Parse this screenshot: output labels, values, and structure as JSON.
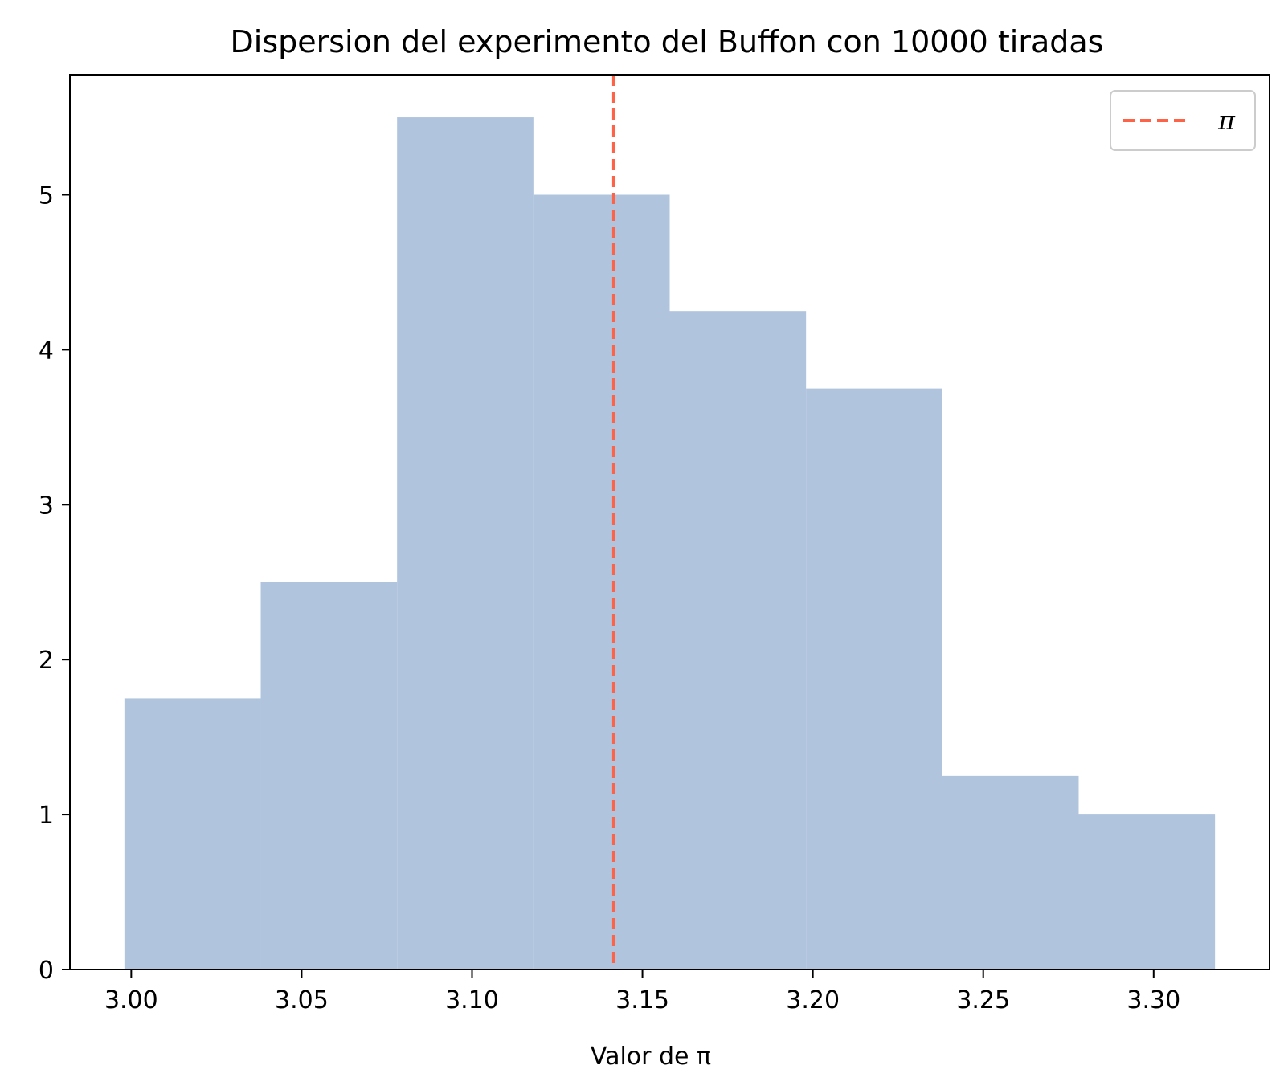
{
  "chart_data": {
    "type": "histogram",
    "title": "Dispersion del experimento del Buffon con 10000 tiradas",
    "xlabel": "Valor de π",
    "ylabel": "",
    "bin_edges": [
      2.998,
      3.038,
      3.078,
      3.118,
      3.158,
      3.198,
      3.238,
      3.278,
      3.318
    ],
    "values": [
      1.75,
      2.5,
      5.5,
      5.0,
      4.25,
      3.75,
      1.25,
      1.0
    ],
    "bar_color": "#b0c4de",
    "xlim": [
      2.982,
      3.334
    ],
    "ylim": [
      0,
      5.775
    ],
    "xticks": [
      3.0,
      3.05,
      3.1,
      3.15,
      3.2,
      3.25,
      3.3
    ],
    "xtick_labels": [
      "3.00",
      "3.05",
      "3.10",
      "3.15",
      "3.20",
      "3.25",
      "3.30"
    ],
    "yticks": [
      0,
      1,
      2,
      3,
      4,
      5
    ],
    "ytick_labels": [
      "0",
      "1",
      "2",
      "3",
      "4",
      "5"
    ],
    "reference_line": {
      "x": 3.14159,
      "style": "dashed",
      "color": "#ff6347",
      "label": "π"
    },
    "legend": {
      "position": "top-right",
      "entries": [
        "π"
      ]
    },
    "grid": false
  }
}
